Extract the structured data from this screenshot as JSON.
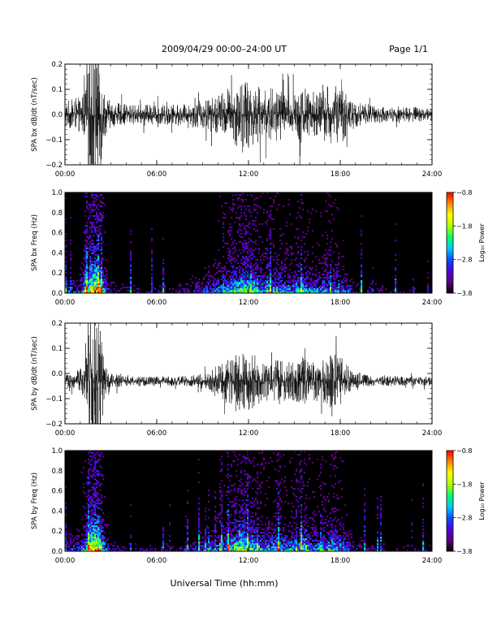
{
  "header": {
    "title": "2009/04/29  00:00–24:00 UT",
    "page": "Page 1/1"
  },
  "footer": {
    "xlabel": "Universal Time (hh:mm)"
  },
  "colors": {
    "trace": "#000000",
    "background": "#ffffff",
    "spectrogram_background": "#000000"
  },
  "chart_data": [
    {
      "type": "line",
      "panel": "bx-timeseries",
      "ylabel": "SPA bx dB/dt (nT/sec)",
      "ylim": [
        -0.2,
        0.2
      ],
      "yticks": [
        -0.2,
        -0.1,
        0.0,
        0.1,
        0.2
      ],
      "ytick_labels": [
        "−0.2",
        "−0.1",
        "0.0",
        "0.1",
        "0.2"
      ],
      "xlim": [
        0,
        24
      ],
      "xticks": [
        0,
        6,
        12,
        18,
        24
      ],
      "xtick_labels": [
        "00:00",
        "06:00",
        "12:00",
        "18:00",
        "24:00"
      ],
      "baseline": 0.0,
      "envelope": {
        "x": [
          0,
          0.5,
          1,
          1.4,
          1.7,
          2.2,
          2.6,
          3,
          4,
          5,
          6,
          7,
          8,
          9,
          9.5,
          10,
          10.5,
          11,
          11.5,
          12,
          12.5,
          13,
          13.5,
          14,
          14.5,
          15,
          15.5,
          16,
          16.5,
          17,
          17.5,
          18,
          18.5,
          19,
          20,
          21,
          22,
          23,
          24
        ],
        "amplitude": [
          0.06,
          0.06,
          0.07,
          0.12,
          0.3,
          0.3,
          0.09,
          0.05,
          0.04,
          0.04,
          0.04,
          0.04,
          0.04,
          0.06,
          0.07,
          0.08,
          0.1,
          0.12,
          0.14,
          0.14,
          0.12,
          0.1,
          0.11,
          0.12,
          0.09,
          0.1,
          0.12,
          0.1,
          0.09,
          0.11,
          0.12,
          0.12,
          0.08,
          0.05,
          0.04,
          0.03,
          0.03,
          0.03,
          0.03
        ]
      }
    },
    {
      "type": "heatmap",
      "panel": "bx-spectrogram",
      "ylabel": "SPA bx Freq (Hz)",
      "ylim": [
        0,
        1.0
      ],
      "yticks": [
        0.0,
        0.2,
        0.4,
        0.6,
        0.8,
        1.0
      ],
      "ytick_labels": [
        "0.0",
        "0.2",
        "0.4",
        "0.6",
        "0.8",
        "1.0"
      ],
      "xlim": [
        0,
        24
      ],
      "xticks": [
        0,
        6,
        12,
        18,
        24
      ],
      "xtick_labels": [
        "00:00",
        "06:00",
        "12:00",
        "18:00",
        "24:00"
      ],
      "colorbar": {
        "label": "Log₁₀ Power",
        "range": [
          -3.8,
          -0.8
        ],
        "ticks": [
          -3.8,
          -2.8,
          -1.8,
          -0.8
        ],
        "tick_labels": [
          "−3.8",
          "−2.8",
          "−1.8",
          "−0.8"
        ],
        "colormap": [
          "#000000",
          "#5a0078",
          "#5000dc",
          "#0050ff",
          "#00c8ff",
          "#00ff64",
          "#b4ff00",
          "#ffff00",
          "#ff8c00",
          "#ff0000"
        ]
      },
      "activity": {
        "x": [
          0,
          0.5,
          1,
          1.4,
          1.7,
          2.2,
          2.6,
          3,
          4,
          5,
          6,
          7,
          8,
          9,
          9.5,
          10,
          10.5,
          11,
          11.5,
          12,
          12.5,
          13,
          13.5,
          14,
          14.5,
          15,
          15.5,
          16,
          16.5,
          17,
          17.5,
          18,
          18.5,
          19,
          20,
          21,
          22,
          23,
          24
        ],
        "level": [
          0.45,
          0.45,
          0.5,
          0.7,
          1.0,
          1.0,
          0.6,
          0.35,
          0.3,
          0.3,
          0.3,
          0.32,
          0.35,
          0.45,
          0.5,
          0.55,
          0.62,
          0.72,
          0.8,
          0.78,
          0.7,
          0.62,
          0.62,
          0.68,
          0.6,
          0.62,
          0.68,
          0.6,
          0.55,
          0.62,
          0.62,
          0.6,
          0.48,
          0.38,
          0.32,
          0.28,
          0.27,
          0.26,
          0.26
        ]
      }
    },
    {
      "type": "line",
      "panel": "by-timeseries",
      "ylabel": "SPA by dB/dt (nT/sec)",
      "ylim": [
        -0.2,
        0.2
      ],
      "yticks": [
        -0.2,
        -0.1,
        0.0,
        0.1,
        0.2
      ],
      "ytick_labels": [
        "−0.2",
        "−0.1",
        "0.0",
        "0.1",
        "0.2"
      ],
      "xlim": [
        0,
        24
      ],
      "xticks": [
        0,
        6,
        12,
        18,
        24
      ],
      "xtick_labels": [
        "00:00",
        "06:00",
        "12:00",
        "18:00",
        "24:00"
      ],
      "baseline": -0.03,
      "envelope": {
        "x": [
          0,
          0.5,
          1,
          1.4,
          1.7,
          2.2,
          2.6,
          3,
          4,
          5,
          6,
          7,
          8,
          9,
          9.5,
          10,
          10.5,
          11,
          11.5,
          12,
          12.5,
          13,
          13.5,
          14,
          14.5,
          15,
          15.5,
          16,
          16.5,
          17,
          17.5,
          18,
          18.5,
          19,
          20,
          21,
          22,
          23,
          24
        ],
        "amplitude": [
          0.03,
          0.03,
          0.05,
          0.1,
          0.3,
          0.3,
          0.06,
          0.03,
          0.02,
          0.02,
          0.02,
          0.02,
          0.02,
          0.03,
          0.04,
          0.06,
          0.08,
          0.1,
          0.12,
          0.12,
          0.1,
          0.08,
          0.09,
          0.1,
          0.07,
          0.08,
          0.1,
          0.08,
          0.08,
          0.1,
          0.12,
          0.1,
          0.06,
          0.04,
          0.02,
          0.02,
          0.02,
          0.02,
          0.02
        ]
      }
    },
    {
      "type": "heatmap",
      "panel": "by-spectrogram",
      "ylabel": "SPA by Freq (Hz)",
      "ylim": [
        0,
        1.0
      ],
      "yticks": [
        0.0,
        0.2,
        0.4,
        0.6,
        0.8,
        1.0
      ],
      "ytick_labels": [
        "0.0",
        "0.2",
        "0.4",
        "0.6",
        "0.8",
        "1.0"
      ],
      "xlim": [
        0,
        24
      ],
      "xticks": [
        0,
        6,
        12,
        18,
        24
      ],
      "xtick_labels": [
        "00:00",
        "06:00",
        "12:00",
        "18:00",
        "24:00"
      ],
      "colorbar": {
        "label": "Log₁₀ Power",
        "range": [
          -3.8,
          -0.8
        ],
        "ticks": [
          -3.8,
          -2.8,
          -1.8,
          -0.8
        ],
        "tick_labels": [
          "−3.8",
          "−2.8",
          "−1.8",
          "−0.8"
        ],
        "colormap": [
          "#000000",
          "#5a0078",
          "#5000dc",
          "#0050ff",
          "#00c8ff",
          "#00ff64",
          "#b4ff00",
          "#ffff00",
          "#ff8c00",
          "#ff0000"
        ]
      },
      "activity": {
        "x": [
          0,
          0.5,
          1,
          1.4,
          1.7,
          2.2,
          2.6,
          3,
          4,
          5,
          6,
          7,
          8,
          9,
          9.5,
          10,
          10.5,
          11,
          11.5,
          12,
          12.5,
          13,
          13.5,
          14,
          14.5,
          15,
          15.5,
          16,
          16.5,
          17,
          17.5,
          18,
          18.5,
          19,
          20,
          21,
          22,
          23,
          24
        ],
        "level": [
          0.45,
          0.45,
          0.5,
          0.7,
          1.0,
          1.0,
          0.6,
          0.35,
          0.3,
          0.3,
          0.3,
          0.32,
          0.35,
          0.45,
          0.5,
          0.55,
          0.62,
          0.75,
          0.85,
          0.8,
          0.7,
          0.62,
          0.62,
          0.68,
          0.6,
          0.62,
          0.7,
          0.62,
          0.58,
          0.65,
          0.68,
          0.62,
          0.5,
          0.38,
          0.32,
          0.28,
          0.27,
          0.26,
          0.26
        ]
      }
    }
  ]
}
